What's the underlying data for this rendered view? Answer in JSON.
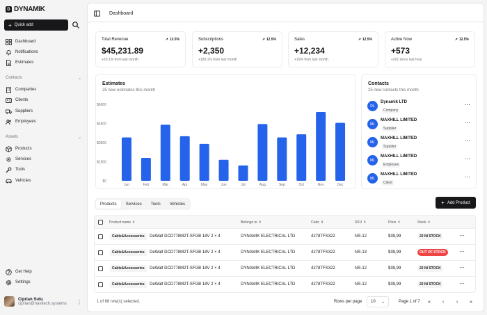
{
  "app": {
    "logo_text": "DYNAMIK",
    "logo_mark": "D"
  },
  "sidebar": {
    "quick_add": "Quick add",
    "top_items": [
      {
        "label": "Dashboard",
        "icon": "grid-icon"
      },
      {
        "label": "Notifications",
        "icon": "bell-icon"
      },
      {
        "label": "Estimates",
        "icon": "document-icon"
      }
    ],
    "contacts_label": "Contacts",
    "contacts_items": [
      {
        "label": "Companies",
        "icon": "building-icon"
      },
      {
        "label": "Clients",
        "icon": "id-card-icon"
      },
      {
        "label": "Suppliers",
        "icon": "truck-icon"
      },
      {
        "label": "Employees",
        "icon": "users-icon"
      }
    ],
    "assets_label": "Assets",
    "assets_items": [
      {
        "label": "Products",
        "icon": "box-icon"
      },
      {
        "label": "Services",
        "icon": "cog-icon"
      },
      {
        "label": "Tools",
        "icon": "wrench-icon"
      },
      {
        "label": "Vehicles",
        "icon": "car-icon"
      }
    ],
    "bottom_items": [
      {
        "label": "Get Help",
        "icon": "help-icon"
      },
      {
        "label": "Settings",
        "icon": "gear-icon"
      }
    ],
    "user": {
      "name": "Ciprian Sutu",
      "email": "ciprian@navitech.systems"
    }
  },
  "header": {
    "title": "Dashboard"
  },
  "stats": [
    {
      "title": "Total Revenue",
      "trend": "12.5%",
      "value": "$45,231.89",
      "sub": "+20.1% from last month"
    },
    {
      "title": "Subscriptions",
      "trend": "12.5%",
      "value": "+2,350",
      "sub": "+180.1% from last month"
    },
    {
      "title": "Sales",
      "trend": "12.5%",
      "value": "+12,234",
      "sub": "+19% from last month"
    },
    {
      "title": "Active Now",
      "trend": "12.5%",
      "value": "+573",
      "sub": "+201 since last hour"
    }
  ],
  "estimates": {
    "title": "Estimates",
    "subtitle": "25 new estimates this month"
  },
  "chart_data": {
    "type": "bar",
    "categories": [
      "Jan",
      "Feb",
      "Mar",
      "Apr",
      "May",
      "Jun",
      "Jul",
      "Aug",
      "Sep",
      "Oct",
      "Nov",
      "Dec"
    ],
    "values": [
      3400,
      1800,
      4400,
      3500,
      2900,
      1650,
      1200,
      4450,
      3400,
      3650,
      5400,
      4550
    ],
    "ylim": [
      0,
      6000
    ],
    "yticks": [
      "$0",
      "$1500",
      "$3000",
      "$4500",
      "$6000"
    ],
    "ytick_values": [
      0,
      1500,
      3000,
      4500,
      6000
    ],
    "color": "#2563eb"
  },
  "contacts": {
    "title": "Contacts",
    "subtitle": "25 new contacts this month",
    "items": [
      {
        "initials": "DL",
        "name": "Dynamik LTD",
        "role": "Company"
      },
      {
        "initials": "ML",
        "name": "MAXHILL LIMITED",
        "role": "Supplier"
      },
      {
        "initials": "ML",
        "name": "MAXHILL LIMITED",
        "role": "Supplier"
      },
      {
        "initials": "ML",
        "name": "MAXHILL LIMITED",
        "role": "Employee"
      },
      {
        "initials": "ML",
        "name": "MAXHILL LIMITED",
        "role": "Client"
      }
    ]
  },
  "tabs": [
    "Products",
    "Services",
    "Tools",
    "Vehicles"
  ],
  "add_product": "Add Product",
  "table": {
    "headers": [
      "Product name",
      "Belongs to",
      "Code",
      "SKU",
      "Price",
      "Stock"
    ],
    "rows": [
      {
        "category": "Cable&Accessories",
        "product": "DeWalt DCD778M2T-SFGB 18V 2 × 4",
        "belongs": "DYNAMIK ELECTRICAL LTD",
        "code": "4278TFS322",
        "sku": "NS-12",
        "price": "$39,99",
        "stock": "22 IN STOCK",
        "out": false
      },
      {
        "category": "Cable&Accessories",
        "product": "DeWalt DCD778M2T-SFGB 18V 2 × 4",
        "belongs": "DYNAMIK ELECTRICAL LTD",
        "code": "4278TFS322",
        "sku": "NS-13",
        "price": "$39,99",
        "stock": "OUT OF STOCK",
        "out": true
      },
      {
        "category": "Cable&Accessories",
        "product": "DeWalt DCD778M2T-SFGB 18V 2 × 4",
        "belongs": "DYNAMIK ELECTRICAL LTD",
        "code": "4278TFS322",
        "sku": "NS-12",
        "price": "$39,99",
        "stock": "22 IN STOCK",
        "out": false
      },
      {
        "category": "Cable&Accessories",
        "product": "DeWalt DCD778M2T-SFGB 18V 2 × 4",
        "belongs": "DYNAMIK ELECTRICAL LTD",
        "code": "4278TFS322",
        "sku": "NS-12",
        "price": "$39,99",
        "stock": "22 IN STOCK",
        "out": false
      }
    ]
  },
  "footer": {
    "selection": "1 of 68 row(s) selected.",
    "rows_per_page_label": "Rows per page",
    "rows_per_page": "10",
    "page_info": "Page 1 of 7"
  }
}
